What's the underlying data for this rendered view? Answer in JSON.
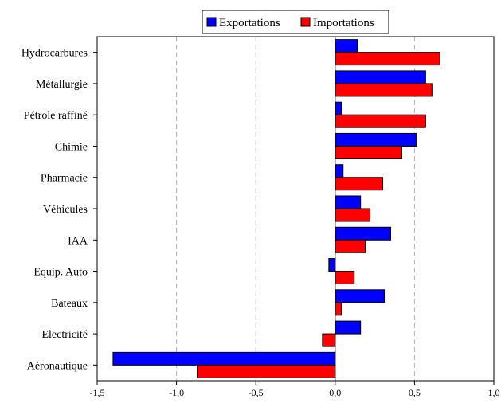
{
  "chart_data": {
    "type": "bar",
    "orientation": "horizontal",
    "categories": [
      "Hydrocarbures",
      "Métallurgie",
      "Pétrole raffiné",
      "Chimie",
      "Pharmacie",
      "Véhicules",
      "IAA",
      "Equip. Auto",
      "Bateaux",
      "Electricité",
      "Aéronautique"
    ],
    "series": [
      {
        "name": "Exportations",
        "color": "#0000ff",
        "values": [
          0.14,
          0.57,
          0.04,
          0.51,
          0.05,
          0.16,
          0.35,
          -0.04,
          0.31,
          0.16,
          -1.4
        ]
      },
      {
        "name": "Importations",
        "color": "#ff0000",
        "values": [
          0.66,
          0.61,
          0.57,
          0.42,
          0.3,
          0.22,
          0.19,
          0.12,
          0.04,
          -0.08,
          -0.87
        ]
      }
    ],
    "xlim": [
      -1.5,
      1.0
    ],
    "x_ticks": [
      -1.5,
      -1.0,
      -0.5,
      0.0,
      0.5,
      1.0
    ],
    "x_tick_labels": [
      "-1,5",
      "-1,0",
      "-0,5",
      "0,0",
      "0,5",
      "1,0"
    ],
    "grid": "vertical dashed",
    "legend": "top-center",
    "title": "",
    "xlabel": "",
    "ylabel": ""
  }
}
